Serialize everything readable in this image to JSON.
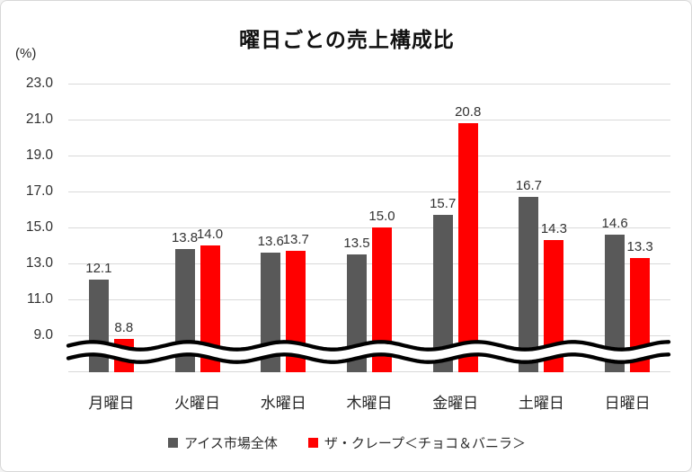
{
  "chart_data": {
    "type": "bar",
    "title": "曜日ごとの売上構成比",
    "unit_label": "(%)",
    "categories": [
      "月曜日",
      "火曜日",
      "水曜日",
      "木曜日",
      "金曜日",
      "土曜日",
      "日曜日"
    ],
    "series": [
      {
        "name": "アイス市場全体",
        "color": "#595959",
        "values": [
          12.1,
          13.8,
          13.6,
          13.5,
          15.7,
          16.7,
          14.6
        ]
      },
      {
        "name": "ザ・クレープ＜チョコ＆バニラ＞",
        "color": "#ff0000",
        "values": [
          8.8,
          14.0,
          13.7,
          15.0,
          20.8,
          14.3,
          13.3
        ]
      }
    ],
    "ylabel": "(%)",
    "xlabel": "",
    "y_axis": {
      "ticks": [
        9.0,
        11.0,
        13.0,
        15.0,
        17.0,
        19.0,
        21.0,
        23.0
      ],
      "tick_step": 2.0,
      "ylim": [
        7.0,
        23.0
      ],
      "axis_break": true
    },
    "grid": true,
    "grid_color": "#d9d9d9",
    "legend_position": "bottom",
    "value_labels_shown": true,
    "axis_break_color": "#000000"
  }
}
